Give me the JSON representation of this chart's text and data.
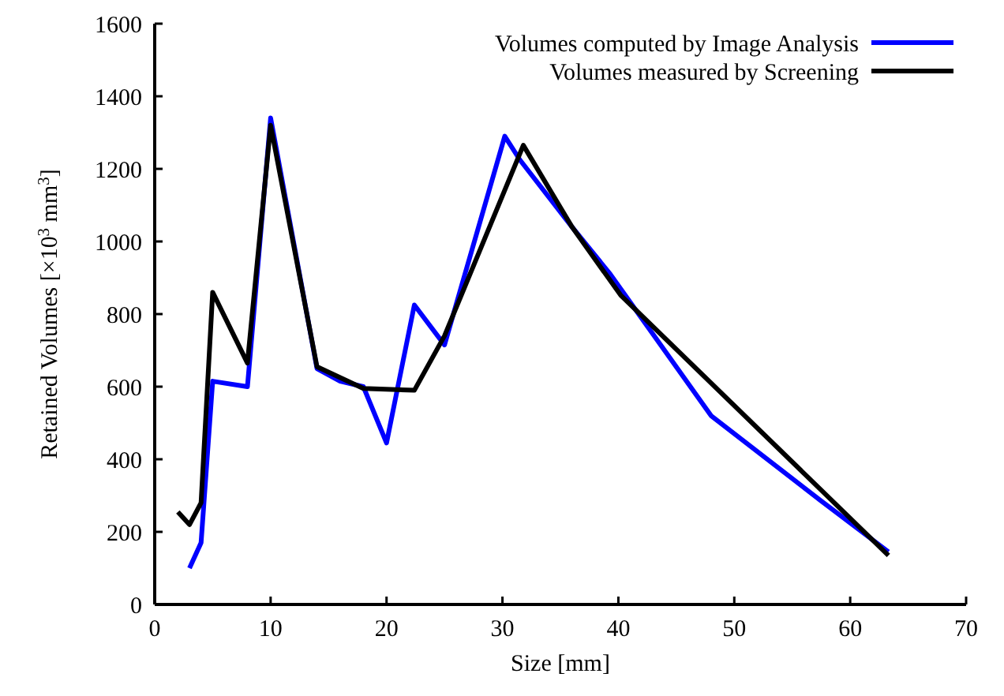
{
  "chart_data": {
    "type": "line",
    "xlabel": "Size [mm]",
    "ylabel": "Retained Volumes [×10$^{3}$ mm$^{3}$]",
    "xlim": [
      0,
      70
    ],
    "ylim": [
      0,
      1600
    ],
    "xticks": [
      0,
      10,
      20,
      30,
      40,
      50,
      60,
      70
    ],
    "yticks": [
      0,
      200,
      400,
      600,
      800,
      1000,
      1200,
      1400,
      1600
    ],
    "grid": false,
    "legend": "top right",
    "marker": "none",
    "line_style": "solid",
    "series": [
      {
        "name": "Volumes computed by Image Analysis",
        "color": "#0000ff",
        "x": [
          3,
          4,
          5,
          8,
          10,
          14,
          16,
          18,
          20,
          22.4,
          25,
          30.2,
          31.5,
          36,
          39.3,
          48,
          57.5,
          63.3
        ],
        "values": [
          100,
          170,
          615,
          600,
          1340,
          650,
          615,
          600,
          445,
          825,
          715,
          1290,
          1225,
          1040,
          910,
          520,
          285,
          145
        ]
      },
      {
        "name": "Volumes measured by Screening",
        "color": "#000000",
        "x": [
          2,
          3,
          4,
          5,
          8,
          10,
          14,
          18,
          22.4,
          25,
          31.8,
          36,
          40.2,
          63.3
        ],
        "values": [
          255,
          220,
          280,
          860,
          665,
          1320,
          655,
          595,
          590,
          740,
          1265,
          1040,
          852,
          135
        ]
      }
    ]
  }
}
